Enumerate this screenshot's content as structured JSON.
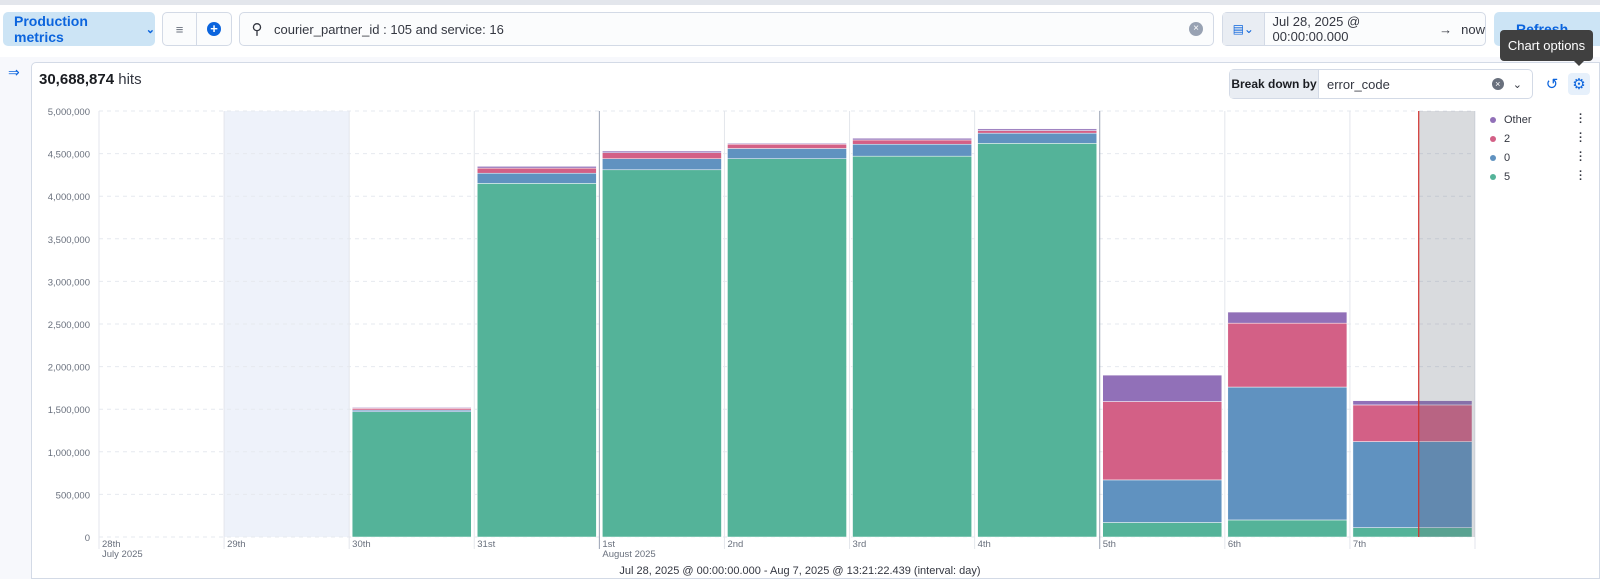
{
  "toolbar": {
    "dataview_label": "Production metrics",
    "query_text": "courier_partner_id : 105 and service: 16",
    "date_start": "Jul 28, 2025 @ 00:00:00.000",
    "date_end": "now",
    "refresh_label": "Refresh"
  },
  "tooltip": {
    "text": "Chart options"
  },
  "panel": {
    "hits_count": "30,688,874",
    "hits_label": "hits",
    "breakdown_label": "Break down by",
    "breakdown_value": "error_code"
  },
  "legend": [
    {
      "label": "Other",
      "color": "#9170b8"
    },
    {
      "label": "2",
      "color": "#d36086"
    },
    {
      "label": "0",
      "color": "#6092c0"
    },
    {
      "label": "5",
      "color": "#54b399"
    }
  ],
  "footer": {
    "text": "Jul 28, 2025 @ 00:00:00.000 - Aug 7, 2025 @ 13:21:22.439 (interval: day)"
  },
  "chart_data": {
    "type": "bar",
    "stacked": true,
    "categories": [
      "28th",
      "29th",
      "30th",
      "31st",
      "1st",
      "2nd",
      "3rd",
      "4th",
      "5th",
      "6th",
      "7th"
    ],
    "sublabels": [
      "July 2025",
      "",
      "",
      "",
      "August 2025",
      "",
      "",
      "",
      "",
      "",
      ""
    ],
    "series": [
      {
        "name": "5",
        "color": "#54b399",
        "values": [
          0,
          0,
          1470000,
          4150000,
          4310000,
          4440000,
          4470000,
          4620000,
          170000,
          200000,
          110000
        ]
      },
      {
        "name": "0",
        "color": "#6092c0",
        "values": [
          0,
          0,
          20000,
          120000,
          130000,
          120000,
          140000,
          120000,
          500000,
          1560000,
          1010000
        ]
      },
      {
        "name": "2",
        "color": "#d36086",
        "values": [
          0,
          0,
          20000,
          60000,
          70000,
          50000,
          50000,
          30000,
          920000,
          750000,
          430000
        ]
      },
      {
        "name": "Other",
        "color": "#9170b8",
        "values": [
          0,
          0,
          10000,
          20000,
          20000,
          10000,
          20000,
          20000,
          310000,
          130000,
          50000
        ]
      }
    ],
    "yticks": [
      "0",
      "500,000",
      "1,000,000",
      "1,500,000",
      "2,000,000",
      "2,500,000",
      "3,000,000",
      "3,500,000",
      "4,000,000",
      "4,500,000",
      "5,000,000"
    ],
    "ylim": [
      0,
      5000000
    ],
    "grid": true,
    "legend_position": "right"
  }
}
